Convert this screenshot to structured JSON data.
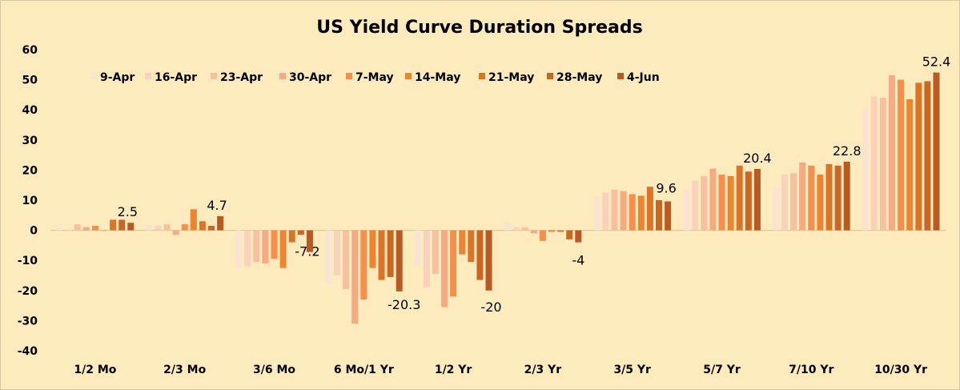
{
  "chart_data": {
    "type": "bar",
    "title": "US Yield Curve Duration Spreads",
    "xlabel": "",
    "ylabel": "",
    "ylim": [
      -40,
      60
    ],
    "yticks": [
      60,
      50,
      40,
      30,
      20,
      10,
      0,
      -10,
      -20,
      -30,
      -40
    ],
    "grid": false,
    "legend_position": "top-left",
    "categories": [
      "1/2 Mo",
      "2/3 Mo",
      "3/6 Mo",
      "6 Mo/1 Yr",
      "1/2 Yr",
      "2/3 Yr",
      "3/5 Yr",
      "5/7 Yr",
      "7/10 Yr",
      "10/30 Yr"
    ],
    "series": [
      {
        "name": "9-Apr",
        "color": "#FBE3D2",
        "values": [
          1.0,
          1.8,
          -12.5,
          -17.5,
          -12.0,
          2.5,
          11.0,
          13.5,
          14.5,
          40.5
        ]
      },
      {
        "name": "16-Apr",
        "color": "#F9D2BC",
        "values": [
          0.2,
          1.5,
          -12.0,
          -15.0,
          -19.0,
          1.0,
          12.5,
          16.5,
          18.5,
          44.5
        ]
      },
      {
        "name": "23-Apr",
        "color": "#F8C0A2",
        "values": [
          2.0,
          2.0,
          -10.5,
          -19.5,
          -14.5,
          1.0,
          13.5,
          18.0,
          19.0,
          44.0
        ]
      },
      {
        "name": "30-Apr",
        "color": "#F6AA82",
        "values": [
          1.0,
          -1.5,
          -11.0,
          -31.0,
          -25.5,
          -1.0,
          13.0,
          20.5,
          22.5,
          51.5
        ]
      },
      {
        "name": "7-May",
        "color": "#F68E4C",
        "values": [
          1.5,
          2.0,
          -9.5,
          -23.0,
          -22.0,
          -3.5,
          12.0,
          18.5,
          21.5,
          50.0
        ]
      },
      {
        "name": "14-May",
        "color": "#EF8430",
        "values": [
          0.0,
          7.0,
          -12.5,
          -12.5,
          -8.0,
          -0.5,
          11.5,
          18.0,
          18.5,
          43.5
        ]
      },
      {
        "name": "21-May",
        "color": "#DC7428",
        "values": [
          3.5,
          3.0,
          -4.0,
          -16.5,
          -10.5,
          -0.5,
          14.5,
          21.5,
          22.0,
          49.0
        ]
      },
      {
        "name": "28-May",
        "color": "#C96624",
        "values": [
          3.5,
          1.5,
          -1.5,
          -15.5,
          -16.5,
          -3.0,
          10.0,
          19.5,
          21.5,
          49.5
        ]
      },
      {
        "name": "4-Jun",
        "color": "#B85A22",
        "values": [
          2.5,
          4.7,
          -7.2,
          -20.3,
          -20.0,
          -4.0,
          9.6,
          20.4,
          22.8,
          52.4
        ]
      }
    ],
    "data_labels": [
      "2.5",
      "4.7",
      "-7.2",
      "-20.3",
      "-20",
      "-4",
      "9.6",
      "20.4",
      "22.8",
      "52.4"
    ]
  }
}
